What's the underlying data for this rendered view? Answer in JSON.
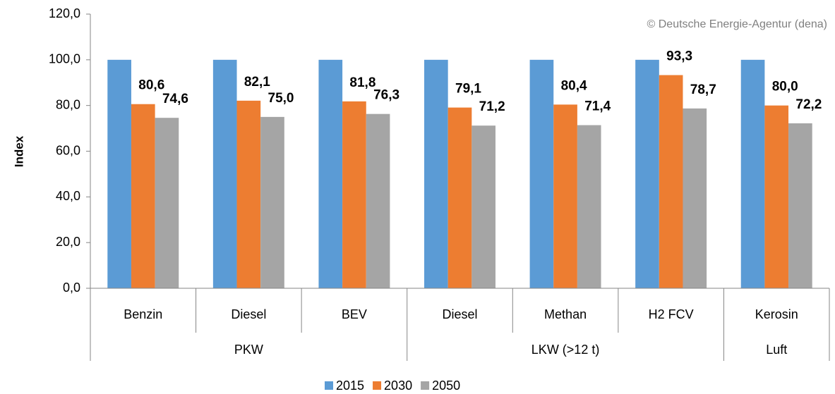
{
  "chart_data": {
    "type": "bar",
    "ylabel": "Index",
    "annotation": "© Deutsche Energie-Agentur (dena)",
    "category_groups": [
      {
        "name": "PKW",
        "categories": [
          "Benzin",
          "Diesel",
          "BEV"
        ]
      },
      {
        "name": "LKW (>12 t)",
        "categories": [
          "Diesel",
          "Methan",
          "H2 FCV"
        ]
      },
      {
        "name": "Luft",
        "categories": [
          "Kerosin"
        ]
      }
    ],
    "series": [
      {
        "name": "2015",
        "color": "#5b9bd5",
        "values": [
          100,
          100,
          100,
          100,
          100,
          100,
          100
        ]
      },
      {
        "name": "2030",
        "color": "#ed7d31",
        "values": [
          80.6,
          82.1,
          81.8,
          79.1,
          80.4,
          93.3,
          80.0
        ],
        "value_labels": [
          "80,6",
          "82,1",
          "81,8",
          "79,1",
          "80,4",
          "93,3",
          "80,0"
        ]
      },
      {
        "name": "2050",
        "color": "#a5a5a5",
        "values": [
          74.6,
          75.0,
          76.3,
          71.2,
          71.4,
          78.7,
          72.2
        ],
        "value_labels": [
          "74,6",
          "75,0",
          "76,3",
          "71,2",
          "71,4",
          "78,7",
          "72,2"
        ]
      }
    ],
    "ylim": [
      0,
      120
    ],
    "yticks": [
      {
        "value": 0,
        "label": "0,0"
      },
      {
        "value": 20,
        "label": "20,0"
      },
      {
        "value": 40,
        "label": "40,0"
      },
      {
        "value": 60,
        "label": "60,0"
      },
      {
        "value": 80,
        "label": "80,0"
      },
      {
        "value": 100,
        "label": "100,0"
      },
      {
        "value": 120,
        "label": "120,0"
      }
    ],
    "legend": "bottom"
  }
}
